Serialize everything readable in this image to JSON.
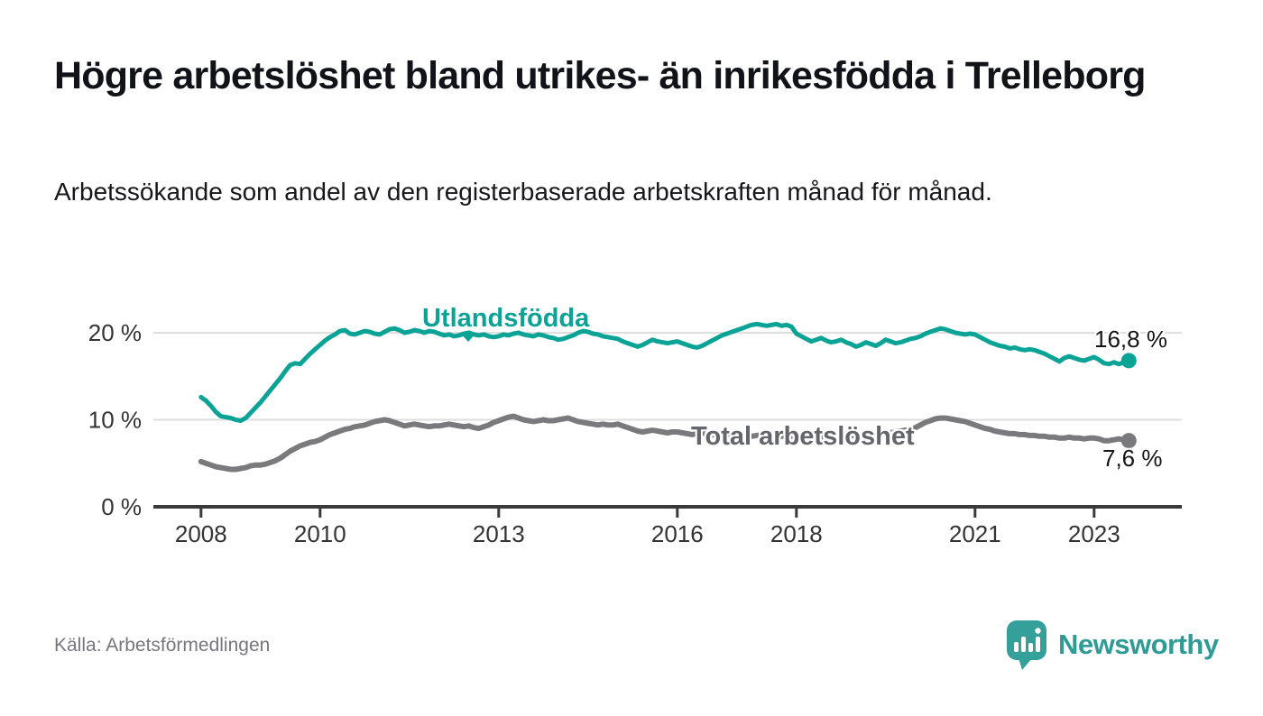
{
  "header": {
    "title": "Högre arbetslöshet bland utrikes- än inrikesfödda i Trelleborg",
    "subtitle": "Arbetssökande som andel av den registerbaserade arbetskraften månad för månad."
  },
  "footer": {
    "source": "Källa: Arbetsförmedlingen",
    "brand": "Newsworthy",
    "logo_icon": "newsworthy-speech-bubble-bar-chart"
  },
  "colors": {
    "teal": "#0AA396",
    "gray_line": "#7A7A7C",
    "gray_label": "#65656C",
    "axis": "#3A3A3A",
    "axis_text": "#333333",
    "grid": "#DEDEDE",
    "end_label_text": "#141414",
    "source_text": "#76767E",
    "brand_teal": "#2E9B94"
  },
  "chart_data": {
    "type": "line",
    "title": "Högre arbetslöshet bland utrikes- än inrikesfödda i Trelleborg",
    "subtitle": "Arbetssökande som andel av den registerbaserade arbetskraften månad för månad.",
    "xlabel": "",
    "ylabel": "",
    "x_start": 2008.0,
    "x_step_months": 1,
    "x_end": 2023.58,
    "x_ticks": [
      2008,
      2010,
      2013,
      2016,
      2018,
      2021,
      2023
    ],
    "y_ticks": [
      {
        "value": 0,
        "label": "0 %"
      },
      {
        "value": 10,
        "label": "10 %"
      },
      {
        "value": 20,
        "label": "20 %"
      }
    ],
    "ylim": [
      0,
      23
    ],
    "grid": "horizontal",
    "legend_position": "inline-labels",
    "series": [
      {
        "name": "Utlandsfödda",
        "color": "#0AA396",
        "end_label": "16,8 %",
        "end_value": 16.8,
        "values": [
          12.6,
          12.2,
          11.6,
          10.9,
          10.4,
          10.3,
          10.2,
          10.0,
          9.9,
          10.2,
          10.8,
          11.4,
          12.0,
          12.7,
          13.4,
          14.1,
          14.8,
          15.6,
          16.3,
          16.5,
          16.4,
          17.0,
          17.6,
          18.1,
          18.6,
          19.1,
          19.5,
          19.8,
          20.2,
          20.3,
          19.9,
          19.8,
          20.0,
          20.2,
          20.1,
          19.9,
          19.8,
          20.1,
          20.4,
          20.5,
          20.3,
          20.0,
          20.1,
          20.3,
          20.2,
          20.0,
          20.2,
          20.1,
          19.9,
          19.7,
          19.8,
          19.6,
          19.7,
          19.9,
          20.0,
          19.8,
          19.7,
          19.8,
          19.6,
          19.5,
          19.6,
          19.8,
          19.7,
          19.9,
          20.0,
          19.8,
          19.7,
          19.6,
          19.8,
          19.7,
          19.5,
          19.4,
          19.2,
          19.3,
          19.5,
          19.7,
          20.0,
          20.2,
          20.1,
          19.9,
          19.8,
          19.6,
          19.5,
          19.4,
          19.3,
          19.0,
          18.8,
          18.6,
          18.4,
          18.6,
          18.9,
          19.2,
          19.0,
          18.9,
          18.8,
          18.9,
          19.0,
          18.8,
          18.6,
          18.4,
          18.3,
          18.5,
          18.8,
          19.1,
          19.4,
          19.7,
          19.9,
          20.1,
          20.3,
          20.5,
          20.7,
          20.9,
          21.0,
          20.9,
          20.8,
          20.9,
          21.0,
          20.8,
          20.9,
          20.7,
          19.9,
          19.6,
          19.3,
          19.0,
          19.2,
          19.4,
          19.1,
          18.9,
          19.0,
          19.2,
          18.9,
          18.7,
          18.4,
          18.6,
          18.9,
          18.7,
          18.5,
          18.8,
          19.2,
          19.0,
          18.8,
          18.9,
          19.1,
          19.3,
          19.4,
          19.6,
          19.9,
          20.1,
          20.3,
          20.5,
          20.4,
          20.2,
          20.0,
          19.9,
          19.8,
          19.9,
          19.8,
          19.5,
          19.2,
          18.9,
          18.7,
          18.5,
          18.4,
          18.2,
          18.3,
          18.1,
          18.0,
          18.1,
          18.0,
          17.8,
          17.6,
          17.3,
          17.0,
          16.7,
          17.1,
          17.3,
          17.1,
          16.9,
          16.8,
          17.0,
          17.2,
          16.9,
          16.5,
          16.4,
          16.6,
          16.4,
          16.6,
          16.8
        ]
      },
      {
        "name": "Total arbetslöshet",
        "color": "#7A7A7C",
        "end_label": "7,6 %",
        "end_value": 7.6,
        "values": [
          5.2,
          5.0,
          4.8,
          4.6,
          4.5,
          4.4,
          4.3,
          4.3,
          4.4,
          4.5,
          4.7,
          4.8,
          4.8,
          4.9,
          5.1,
          5.3,
          5.6,
          6.0,
          6.4,
          6.7,
          7.0,
          7.2,
          7.4,
          7.5,
          7.7,
          8.0,
          8.3,
          8.5,
          8.7,
          8.9,
          9.0,
          9.2,
          9.3,
          9.4,
          9.6,
          9.8,
          9.9,
          10.0,
          9.9,
          9.7,
          9.5,
          9.3,
          9.4,
          9.5,
          9.4,
          9.3,
          9.2,
          9.3,
          9.3,
          9.4,
          9.5,
          9.4,
          9.3,
          9.2,
          9.3,
          9.1,
          9.0,
          9.2,
          9.4,
          9.7,
          9.9,
          10.1,
          10.3,
          10.4,
          10.2,
          10.0,
          9.9,
          9.8,
          9.9,
          10.0,
          9.9,
          9.9,
          10.0,
          10.1,
          10.2,
          10.0,
          9.8,
          9.7,
          9.6,
          9.5,
          9.4,
          9.5,
          9.4,
          9.4,
          9.5,
          9.3,
          9.1,
          8.9,
          8.7,
          8.6,
          8.7,
          8.8,
          8.7,
          8.6,
          8.5,
          8.6,
          8.6,
          8.5,
          8.4,
          8.3,
          8.4,
          8.5,
          8.4,
          8.3,
          8.2,
          8.3,
          8.4,
          8.3,
          8.4,
          8.3,
          8.2,
          8.1,
          8.2,
          8.3,
          8.2,
          8.1,
          8.0,
          8.1,
          8.2,
          8.1,
          8.1,
          8.0,
          8.1,
          8.2,
          8.1,
          8.0,
          7.9,
          8.0,
          8.1,
          8.0,
          8.1,
          8.2,
          8.2,
          8.3,
          8.4,
          8.3,
          8.4,
          8.5,
          8.6,
          8.5,
          8.6,
          8.7,
          8.8,
          8.9,
          9.1,
          9.4,
          9.7,
          9.9,
          10.1,
          10.2,
          10.2,
          10.1,
          10.0,
          9.9,
          9.8,
          9.6,
          9.4,
          9.2,
          9.0,
          8.9,
          8.7,
          8.6,
          8.5,
          8.4,
          8.4,
          8.3,
          8.3,
          8.2,
          8.2,
          8.1,
          8.1,
          8.0,
          8.0,
          7.9,
          7.9,
          8.0,
          7.9,
          7.9,
          7.8,
          7.9,
          7.9,
          7.8,
          7.6,
          7.6,
          7.7,
          7.8,
          7.7,
          7.6
        ]
      }
    ]
  }
}
